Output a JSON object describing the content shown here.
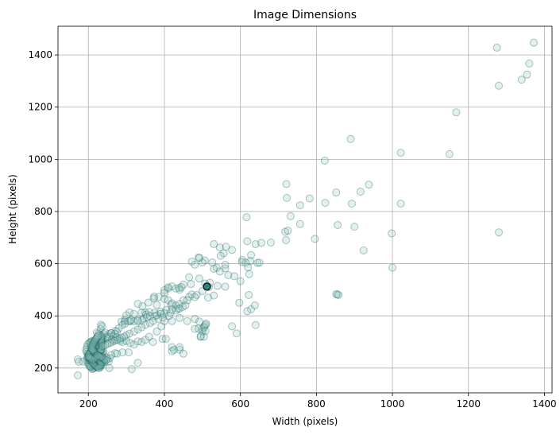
{
  "chart_data": {
    "type": "scatter",
    "title": "Image Dimensions",
    "xlabel": "Width (pixels)",
    "ylabel": "Height (pixels)",
    "xlim": [
      120,
      1420
    ],
    "ylim": [
      105,
      1510
    ],
    "xticks": [
      200,
      400,
      600,
      800,
      1000,
      1200,
      1400
    ],
    "yticks": [
      200,
      400,
      600,
      800,
      1000,
      1200,
      1400
    ],
    "grid": true,
    "colors": {
      "marker_fill": "#8fc3bd",
      "marker_edge": "#0d5c5a",
      "marker_opacity": 0.25,
      "highlight_fill": "#1e8a80",
      "highlight_edge": "#000000"
    },
    "highlight_point": [
      512,
      512
    ],
    "points": [
      [
        1372,
        1447
      ],
      [
        1275,
        1428
      ],
      [
        1360,
        1367
      ],
      [
        1354,
        1325
      ],
      [
        1340,
        1305
      ],
      [
        1280,
        1282
      ],
      [
        1168,
        1180
      ],
      [
        1022,
        1025
      ],
      [
        1150,
        1020
      ],
      [
        890,
        1078
      ],
      [
        822,
        995
      ],
      [
        938,
        903
      ],
      [
        916,
        876
      ],
      [
        852,
        873
      ],
      [
        721,
        905
      ],
      [
        722,
        852
      ],
      [
        893,
        830
      ],
      [
        1022,
        830
      ],
      [
        782,
        850
      ],
      [
        823,
        833
      ],
      [
        757,
        824
      ],
      [
        732,
        782
      ],
      [
        757,
        752
      ],
      [
        718,
        722
      ],
      [
        725,
        727
      ],
      [
        856,
        748
      ],
      [
        900,
        742
      ],
      [
        1280,
        720
      ],
      [
        998,
        716
      ],
      [
        796,
        695
      ],
      [
        720,
        690
      ],
      [
        924,
        651
      ],
      [
        616,
        778
      ],
      [
        618,
        686
      ],
      [
        640,
        675
      ],
      [
        655,
        680
      ],
      [
        680,
        681
      ],
      [
        628,
        633
      ],
      [
        626,
        610
      ],
      [
        645,
        603
      ],
      [
        650,
        604
      ],
      [
        605,
        614
      ],
      [
        614,
        604
      ],
      [
        604,
        606
      ],
      [
        578,
        653
      ],
      [
        562,
        665
      ],
      [
        546,
        662
      ],
      [
        530,
        675
      ],
      [
        556,
        640
      ],
      [
        548,
        630
      ],
      [
        526,
        605
      ],
      [
        506,
        612
      ],
      [
        500,
        605
      ],
      [
        490,
        624
      ],
      [
        492,
        622
      ],
      [
        472,
        608
      ],
      [
        480,
        596
      ],
      [
        538,
        584
      ],
      [
        530,
        580
      ],
      [
        560,
        582
      ],
      [
        560,
        596
      ],
      [
        546,
        570
      ],
      [
        568,
        556
      ],
      [
        584,
        552
      ],
      [
        620,
        586
      ],
      [
        623,
        560
      ],
      [
        600,
        533
      ],
      [
        560,
        512
      ],
      [
        540,
        515
      ],
      [
        512,
        516
      ],
      [
        507,
        524
      ],
      [
        520,
        527
      ],
      [
        492,
        543
      ],
      [
        465,
        548
      ],
      [
        470,
        522
      ],
      [
        450,
        520
      ],
      [
        439,
        507
      ],
      [
        440,
        500
      ],
      [
        445,
        510
      ],
      [
        430,
        505
      ],
      [
        410,
        505
      ],
      [
        410,
        510
      ],
      [
        420,
        513
      ],
      [
        400,
        498
      ],
      [
        400,
        488
      ],
      [
        385,
        473
      ],
      [
        373,
        474
      ],
      [
        372,
        467
      ],
      [
        400,
        465
      ],
      [
        410,
        460
      ],
      [
        380,
        442
      ],
      [
        358,
        451
      ],
      [
        342,
        437
      ],
      [
        330,
        446
      ],
      [
        340,
        412
      ],
      [
        350,
        413
      ],
      [
        320,
        407
      ],
      [
        308,
        413
      ],
      [
        300,
        402
      ],
      [
        296,
        385
      ],
      [
        287,
        378
      ],
      [
        296,
        378
      ],
      [
        310,
        379
      ],
      [
        330,
        384
      ],
      [
        345,
        390
      ],
      [
        352,
        405
      ],
      [
        360,
        415
      ],
      [
        374,
        412
      ],
      [
        390,
        416
      ],
      [
        405,
        423
      ],
      [
        418,
        443
      ],
      [
        420,
        448
      ],
      [
        430,
        440
      ],
      [
        440,
        446
      ],
      [
        450,
        460
      ],
      [
        465,
        473
      ],
      [
        472,
        482
      ],
      [
        485,
        480
      ],
      [
        500,
        495
      ],
      [
        517,
        510
      ],
      [
        530,
        478
      ],
      [
        515,
        470
      ],
      [
        480,
        472
      ],
      [
        460,
        460
      ],
      [
        436,
        427
      ],
      [
        430,
        420
      ],
      [
        420,
        425
      ],
      [
        400,
        410
      ],
      [
        390,
        408
      ],
      [
        380,
        402
      ],
      [
        375,
        399
      ],
      [
        362,
        400
      ],
      [
        354,
        395
      ],
      [
        342,
        383
      ],
      [
        330,
        380
      ],
      [
        320,
        379
      ],
      [
        312,
        384
      ],
      [
        306,
        380
      ],
      [
        296,
        370
      ],
      [
        289,
        365
      ],
      [
        280,
        352
      ],
      [
        272,
        343
      ],
      [
        275,
        338
      ],
      [
        270,
        330
      ],
      [
        260,
        334
      ],
      [
        254,
        330
      ],
      [
        255,
        320
      ],
      [
        248,
        315
      ],
      [
        240,
        308
      ],
      [
        236,
        304
      ],
      [
        233,
        300
      ],
      [
        228,
        295
      ],
      [
        225,
        290
      ],
      [
        232,
        350
      ],
      [
        233,
        366
      ],
      [
        236,
        360
      ],
      [
        240,
        330
      ],
      [
        244,
        336
      ],
      [
        250,
        320
      ],
      [
        260,
        334
      ],
      [
        262,
        310
      ],
      [
        266,
        322
      ],
      [
        270,
        308
      ],
      [
        275,
        318
      ],
      [
        284,
        304
      ],
      [
        290,
        300
      ],
      [
        300,
        304
      ],
      [
        310,
        296
      ],
      [
        320,
        290
      ],
      [
        330,
        302
      ],
      [
        340,
        300
      ],
      [
        350,
        308
      ],
      [
        360,
        320
      ],
      [
        370,
        300
      ],
      [
        380,
        340
      ],
      [
        392,
        360
      ],
      [
        400,
        380
      ],
      [
        420,
        380
      ],
      [
        440,
        392
      ],
      [
        460,
        380
      ],
      [
        480,
        388
      ],
      [
        492,
        378
      ],
      [
        500,
        350
      ],
      [
        505,
        360
      ],
      [
        510,
        370
      ],
      [
        480,
        350
      ],
      [
        495,
        320
      ],
      [
        500,
        340
      ],
      [
        420,
        280
      ],
      [
        420,
        265
      ],
      [
        425,
        270
      ],
      [
        440,
        270
      ],
      [
        440,
        280
      ],
      [
        450,
        255
      ],
      [
        395,
        312
      ],
      [
        404,
        312
      ],
      [
        330,
        220
      ],
      [
        314,
        196
      ],
      [
        306,
        260
      ],
      [
        290,
        260
      ],
      [
        275,
        255
      ],
      [
        270,
        257
      ],
      [
        260,
        250
      ],
      [
        256,
        238
      ],
      [
        250,
        234
      ],
      [
        248,
        240
      ],
      [
        253,
        225
      ],
      [
        255,
        200
      ],
      [
        232,
        204
      ],
      [
        234,
        210
      ],
      [
        230,
        218
      ],
      [
        228,
        224
      ],
      [
        225,
        230
      ],
      [
        222,
        235
      ],
      [
        220,
        242
      ],
      [
        218,
        247
      ],
      [
        216,
        252
      ],
      [
        214,
        258
      ],
      [
        212,
        262
      ],
      [
        210,
        268
      ],
      [
        208,
        275
      ],
      [
        207,
        282
      ],
      [
        206,
        290
      ],
      [
        205,
        298
      ],
      [
        203,
        246
      ],
      [
        202,
        244
      ],
      [
        203,
        249
      ],
      [
        205,
        251
      ],
      [
        200,
        248
      ],
      [
        200,
        250
      ],
      [
        200,
        252
      ],
      [
        202,
        246
      ],
      [
        206,
        248
      ],
      [
        208,
        250
      ],
      [
        210,
        252
      ],
      [
        212,
        254
      ],
      [
        214,
        250
      ],
      [
        216,
        248
      ],
      [
        218,
        246
      ],
      [
        220,
        244
      ],
      [
        222,
        242
      ],
      [
        224,
        240
      ],
      [
        226,
        238
      ],
      [
        228,
        236
      ],
      [
        230,
        234
      ],
      [
        232,
        232
      ],
      [
        234,
        230
      ],
      [
        236,
        228
      ],
      [
        238,
        226
      ],
      [
        240,
        224
      ],
      [
        242,
        222
      ],
      [
        236,
        220
      ],
      [
        232,
        218
      ],
      [
        230,
        216
      ],
      [
        228,
        214
      ],
      [
        226,
        212
      ],
      [
        224,
        210
      ],
      [
        222,
        208
      ],
      [
        220,
        206
      ],
      [
        218,
        204
      ],
      [
        216,
        202
      ],
      [
        214,
        200
      ],
      [
        212,
        198
      ],
      [
        210,
        196
      ],
      [
        208,
        214
      ],
      [
        206,
        220
      ],
      [
        204,
        226
      ],
      [
        202,
        232
      ],
      [
        200,
        238
      ],
      [
        201,
        230
      ],
      [
        204,
        212
      ],
      [
        207,
        206
      ],
      [
        210,
        210
      ],
      [
        212,
        216
      ],
      [
        215,
        222
      ],
      [
        218,
        228
      ],
      [
        220,
        232
      ],
      [
        223,
        236
      ],
      [
        226,
        240
      ],
      [
        229,
        244
      ],
      [
        231,
        248
      ],
      [
        234,
        252
      ],
      [
        236,
        256
      ],
      [
        238,
        260
      ],
      [
        240,
        264
      ],
      [
        231,
        266
      ],
      [
        229,
        270
      ],
      [
        227,
        274
      ],
      [
        224,
        280
      ],
      [
        222,
        284
      ],
      [
        219,
        290
      ],
      [
        216,
        296
      ],
      [
        210,
        304
      ],
      [
        206,
        300
      ],
      [
        202,
        296
      ],
      [
        198,
        290
      ],
      [
        196,
        280
      ],
      [
        194,
        270
      ],
      [
        195,
        262
      ],
      [
        198,
        256
      ],
      [
        197,
        240
      ],
      [
        196,
        232
      ],
      [
        198,
        222
      ],
      [
        200,
        216
      ],
      [
        203,
        208
      ],
      [
        205,
        204
      ],
      [
        185,
        225
      ],
      [
        172,
        233
      ],
      [
        175,
        224
      ],
      [
        172,
        172
      ],
      [
        225,
        260
      ],
      [
        228,
        262
      ],
      [
        230,
        264
      ],
      [
        232,
        266
      ],
      [
        234,
        268
      ],
      [
        234,
        272
      ],
      [
        234,
        280
      ],
      [
        234,
        286
      ],
      [
        234,
        292
      ],
      [
        234,
        296
      ],
      [
        234,
        300
      ],
      [
        234,
        304
      ],
      [
        234,
        308
      ],
      [
        234,
        312
      ],
      [
        234,
        316
      ],
      [
        234,
        320
      ],
      [
        234,
        324
      ],
      [
        230,
        328
      ],
      [
        226,
        332
      ],
      [
        222,
        336
      ],
      [
        218,
        300
      ],
      [
        214,
        290
      ],
      [
        212,
        282
      ],
      [
        211,
        276
      ],
      [
        209,
        270
      ],
      [
        207,
        264
      ],
      [
        205,
        258
      ],
      [
        203,
        254
      ],
      [
        201,
        250
      ],
      [
        202,
        240
      ],
      [
        204,
        236
      ],
      [
        206,
        232
      ],
      [
        208,
        228
      ],
      [
        210,
        224
      ],
      [
        212,
        220
      ],
      [
        214,
        216
      ],
      [
        216,
        212
      ],
      [
        218,
        210
      ],
      [
        220,
        208
      ],
      [
        222,
        206
      ],
      [
        224,
        204
      ],
      [
        226,
        202
      ],
      [
        228,
        200
      ],
      [
        230,
        208
      ],
      [
        232,
        212
      ],
      [
        234,
        216
      ],
      [
        232,
        222
      ],
      [
        230,
        226
      ],
      [
        228,
        230
      ],
      [
        226,
        234
      ],
      [
        224,
        238
      ],
      [
        222,
        244
      ],
      [
        220,
        250
      ],
      [
        218,
        256
      ],
      [
        216,
        260
      ],
      [
        214,
        264
      ],
      [
        212,
        268
      ],
      [
        210,
        272
      ],
      [
        208,
        278
      ],
      [
        210,
        286
      ],
      [
        212,
        292
      ],
      [
        214,
        298
      ],
      [
        216,
        304
      ],
      [
        218,
        308
      ],
      [
        220,
        312
      ],
      [
        222,
        316
      ],
      [
        224,
        320
      ],
      [
        226,
        324
      ],
      [
        855,
        482
      ],
      [
        852,
        483
      ],
      [
        858,
        480
      ],
      [
        622,
        480
      ],
      [
        628,
        425
      ],
      [
        638,
        440
      ],
      [
        640,
        365
      ],
      [
        618,
        418
      ],
      [
        597,
        450
      ],
      [
        590,
        333
      ],
      [
        578,
        360
      ],
      [
        504,
        355
      ],
      [
        508,
        366
      ],
      [
        508,
        342
      ],
      [
        504,
        320
      ],
      [
        496,
        322
      ],
      [
        490,
        351
      ],
      [
        440,
        428
      ],
      [
        448,
        434
      ],
      [
        455,
        440
      ],
      [
        416,
        412
      ],
      [
        412,
        400
      ],
      [
        396,
        394
      ],
      [
        384,
        388
      ],
      [
        370,
        380
      ],
      [
        362,
        372
      ],
      [
        350,
        366
      ],
      [
        340,
        356
      ],
      [
        330,
        348
      ],
      [
        320,
        340
      ],
      [
        308,
        332
      ],
      [
        300,
        326
      ],
      [
        294,
        320
      ],
      [
        288,
        316
      ],
      [
        282,
        312
      ],
      [
        276,
        308
      ],
      [
        268,
        304
      ],
      [
        262,
        300
      ],
      [
        256,
        296
      ],
      [
        250,
        292
      ],
      [
        244,
        288
      ],
      [
        238,
        284
      ],
      [
        210,
        240
      ],
      [
        214,
        244
      ],
      [
        218,
        242
      ],
      [
        222,
        246
      ],
      [
        226,
        250
      ],
      [
        230,
        246
      ],
      [
        234,
        242
      ],
      [
        238,
        238
      ],
      [
        242,
        234
      ],
      [
        246,
        230
      ],
      [
        236,
        244
      ],
      [
        232,
        240
      ],
      [
        228,
        244
      ],
      [
        224,
        248
      ],
      [
        220,
        240
      ],
      [
        216,
        236
      ],
      [
        212,
        232
      ],
      [
        208,
        236
      ],
      [
        204,
        240
      ],
      [
        200,
        244
      ],
      [
        1000,
        585
      ]
    ]
  }
}
